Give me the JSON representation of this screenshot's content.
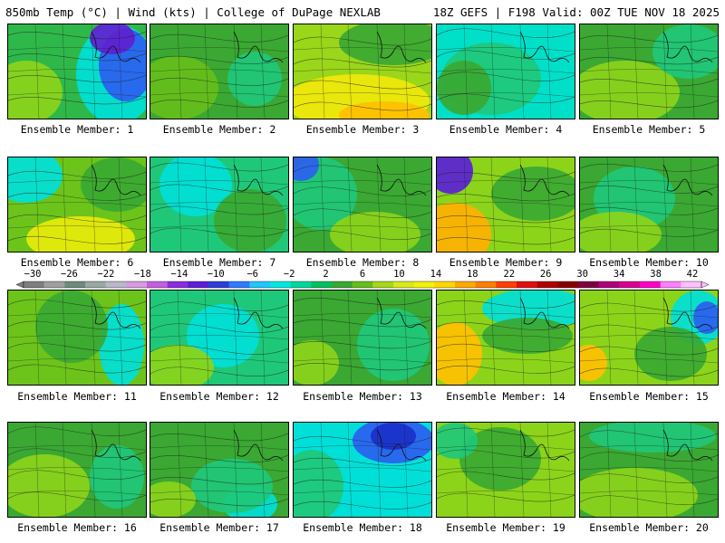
{
  "header": {
    "left": "850mb Temp (°C) | Wind (kts) | College of DuPage NEXLAB",
    "right": "18Z GEFS | F198 Valid: 00Z TUE NOV 18 2025"
  },
  "colorbar": {
    "tick_labels": [
      "−30",
      "−26",
      "−22",
      "−18",
      "−14",
      "−10",
      "−6",
      "−2",
      "2",
      "6",
      "10",
      "14",
      "18",
      "22",
      "26",
      "30",
      "34",
      "38",
      "42"
    ],
    "colors": [
      "#7f7f7f",
      "#a0a0a0",
      "#6e8b7e",
      "#9aa8a4",
      "#b8b8c8",
      "#d79be0",
      "#c25fe0",
      "#8a2be2",
      "#5a1fd6",
      "#2b3fd8",
      "#2f7bff",
      "#1ec8ff",
      "#00e8e0",
      "#00d89a",
      "#00c060",
      "#3aa832",
      "#66bf1a",
      "#a6d81a",
      "#d8ea1a",
      "#f2f20a",
      "#ffd700",
      "#ffaa00",
      "#ff8000",
      "#ff4000",
      "#e01010",
      "#b00000",
      "#8a0000",
      "#800040",
      "#b0007a",
      "#d8008f",
      "#ff00c8",
      "#ff80ff",
      "#ffc0ff"
    ]
  },
  "panels": [
    {
      "label": "Ensemble Member: 1",
      "base": "#2fb84a",
      "patches": [
        {
          "c": "#00e0d8",
          "cx": 120,
          "cy": 55,
          "rx": 45,
          "ry": 55
        },
        {
          "c": "#2b5ff0",
          "cx": 130,
          "cy": 45,
          "rx": 30,
          "ry": 40
        },
        {
          "c": "#6020d0",
          "cx": 115,
          "cy": 15,
          "rx": 25,
          "ry": 18
        },
        {
          "c": "#8cd41a",
          "cx": 20,
          "cy": 75,
          "rx": 40,
          "ry": 35
        }
      ]
    },
    {
      "label": "Ensemble Member: 2",
      "base": "#3aa832",
      "patches": [
        {
          "c": "#66bf1a",
          "cx": 30,
          "cy": 70,
          "rx": 45,
          "ry": 35
        },
        {
          "c": "#1fc878",
          "cx": 115,
          "cy": 60,
          "rx": 30,
          "ry": 30
        }
      ]
    },
    {
      "label": "Ensemble Member: 3",
      "base": "#9ad61a",
      "patches": [
        {
          "c": "#f0e80a",
          "cx": 70,
          "cy": 85,
          "rx": 80,
          "ry": 30
        },
        {
          "c": "#ffc000",
          "cx": 100,
          "cy": 100,
          "rx": 50,
          "ry": 15
        },
        {
          "c": "#3aa832",
          "cx": 110,
          "cy": 20,
          "rx": 60,
          "ry": 25
        }
      ]
    },
    {
      "label": "Ensemble Member: 4",
      "base": "#00e0c8",
      "patches": [
        {
          "c": "#1fc878",
          "cx": 60,
          "cy": 60,
          "rx": 55,
          "ry": 40
        },
        {
          "c": "#3aa832",
          "cx": 30,
          "cy": 70,
          "rx": 30,
          "ry": 30
        }
      ]
    },
    {
      "label": "Ensemble Member: 5",
      "base": "#3aa832",
      "patches": [
        {
          "c": "#8cd41a",
          "cx": 50,
          "cy": 75,
          "rx": 60,
          "ry": 35
        },
        {
          "c": "#1fc878",
          "cx": 120,
          "cy": 30,
          "rx": 40,
          "ry": 30
        }
      ]
    },
    {
      "label": "Ensemble Member: 6",
      "base": "#6cc41a",
      "patches": [
        {
          "c": "#00e0d8",
          "cx": 20,
          "cy": 20,
          "rx": 40,
          "ry": 30
        },
        {
          "c": "#e8ea0a",
          "cx": 80,
          "cy": 90,
          "rx": 60,
          "ry": 25
        },
        {
          "c": "#3aa832",
          "cx": 120,
          "cy": 30,
          "rx": 40,
          "ry": 30
        }
      ]
    },
    {
      "label": "Ensemble Member: 7",
      "base": "#1fc878",
      "patches": [
        {
          "c": "#00e0d8",
          "cx": 50,
          "cy": 30,
          "rx": 40,
          "ry": 35
        },
        {
          "c": "#3aa832",
          "cx": 110,
          "cy": 70,
          "rx": 40,
          "ry": 35
        }
      ]
    },
    {
      "label": "Ensemble Member: 8",
      "base": "#3aa832",
      "patches": [
        {
          "c": "#1fc878",
          "cx": 30,
          "cy": 40,
          "rx": 40,
          "ry": 40
        },
        {
          "c": "#2b5ff0",
          "cx": 8,
          "cy": 8,
          "rx": 20,
          "ry": 18
        },
        {
          "c": "#8cd41a",
          "cx": 90,
          "cy": 85,
          "rx": 50,
          "ry": 25
        }
      ]
    },
    {
      "label": "Ensemble Member: 9",
      "base": "#8cd41a",
      "patches": [
        {
          "c": "#ffb000",
          "cx": 20,
          "cy": 85,
          "rx": 40,
          "ry": 35
        },
        {
          "c": "#5a1fd6",
          "cx": 15,
          "cy": 15,
          "rx": 25,
          "ry": 25
        },
        {
          "c": "#3aa832",
          "cx": 110,
          "cy": 40,
          "rx": 50,
          "ry": 30
        }
      ]
    },
    {
      "label": "Ensemble Member: 10",
      "base": "#3aa832",
      "patches": [
        {
          "c": "#1fc878",
          "cx": 60,
          "cy": 45,
          "rx": 45,
          "ry": 35
        },
        {
          "c": "#8cd41a",
          "cx": 40,
          "cy": 85,
          "rx": 50,
          "ry": 25
        }
      ]
    },
    {
      "label": "Ensemble Member: 11",
      "base": "#6cc41a",
      "patches": [
        {
          "c": "#00e0d8",
          "cx": 125,
          "cy": 60,
          "rx": 25,
          "ry": 45
        },
        {
          "c": "#3aa832",
          "cx": 70,
          "cy": 40,
          "rx": 40,
          "ry": 40
        }
      ]
    },
    {
      "label": "Ensemble Member: 12",
      "base": "#1fc878",
      "patches": [
        {
          "c": "#00e0d8",
          "cx": 80,
          "cy": 50,
          "rx": 40,
          "ry": 35
        },
        {
          "c": "#8cd41a",
          "cx": 30,
          "cy": 85,
          "rx": 40,
          "ry": 25
        }
      ]
    },
    {
      "label": "Ensemble Member: 13",
      "base": "#3aa832",
      "patches": [
        {
          "c": "#1fc878",
          "cx": 110,
          "cy": 60,
          "rx": 40,
          "ry": 40
        },
        {
          "c": "#8cd41a",
          "cx": 20,
          "cy": 80,
          "rx": 30,
          "ry": 25
        }
      ]
    },
    {
      "label": "Ensemble Member: 14",
      "base": "#8cd41a",
      "patches": [
        {
          "c": "#ffc000",
          "cx": 20,
          "cy": 70,
          "rx": 30,
          "ry": 35
        },
        {
          "c": "#00e0d8",
          "cx": 110,
          "cy": 20,
          "rx": 60,
          "ry": 22
        },
        {
          "c": "#3aa832",
          "cx": 100,
          "cy": 50,
          "rx": 50,
          "ry": 20
        }
      ]
    },
    {
      "label": "Ensemble Member: 15",
      "base": "#8cd41a",
      "patches": [
        {
          "c": "#00e0d8",
          "cx": 130,
          "cy": 30,
          "rx": 30,
          "ry": 30
        },
        {
          "c": "#2b5ff0",
          "cx": 140,
          "cy": 30,
          "rx": 15,
          "ry": 18
        },
        {
          "c": "#ffc000",
          "cx": 10,
          "cy": 80,
          "rx": 20,
          "ry": 20
        },
        {
          "c": "#3aa832",
          "cx": 100,
          "cy": 70,
          "rx": 40,
          "ry": 30
        }
      ]
    },
    {
      "label": "Ensemble Member: 16",
      "base": "#3aa832",
      "patches": [
        {
          "c": "#8cd41a",
          "cx": 40,
          "cy": 70,
          "rx": 50,
          "ry": 35
        },
        {
          "c": "#1fc878",
          "cx": 120,
          "cy": 60,
          "rx": 30,
          "ry": 35
        }
      ]
    },
    {
      "label": "Ensemble Member: 17",
      "base": "#3aa832",
      "patches": [
        {
          "c": "#00e0d8",
          "cx": 110,
          "cy": 90,
          "rx": 30,
          "ry": 20
        },
        {
          "c": "#1fc878",
          "cx": 90,
          "cy": 70,
          "rx": 45,
          "ry": 30
        },
        {
          "c": "#8cd41a",
          "cx": 20,
          "cy": 85,
          "rx": 30,
          "ry": 20
        }
      ]
    },
    {
      "label": "Ensemble Member: 18",
      "base": "#00e0d8",
      "patches": [
        {
          "c": "#1fc878",
          "cx": 20,
          "cy": 70,
          "rx": 35,
          "ry": 40
        },
        {
          "c": "#2b5ff0",
          "cx": 110,
          "cy": 20,
          "rx": 45,
          "ry": 25
        },
        {
          "c": "#1a30c8",
          "cx": 110,
          "cy": 15,
          "rx": 25,
          "ry": 15
        }
      ]
    },
    {
      "label": "Ensemble Member: 19",
      "base": "#8cd41a",
      "patches": [
        {
          "c": "#3aa832",
          "cx": 70,
          "cy": 40,
          "rx": 45,
          "ry": 35
        },
        {
          "c": "#1fc878",
          "cx": 20,
          "cy": 20,
          "rx": 25,
          "ry": 20
        }
      ]
    },
    {
      "label": "Ensemble Member: 20",
      "base": "#3aa832",
      "patches": [
        {
          "c": "#8cd41a",
          "cx": 60,
          "cy": 80,
          "rx": 70,
          "ry": 30
        },
        {
          "c": "#1fc878",
          "cx": 80,
          "cy": 15,
          "rx": 70,
          "ry": 18
        }
      ]
    }
  ]
}
